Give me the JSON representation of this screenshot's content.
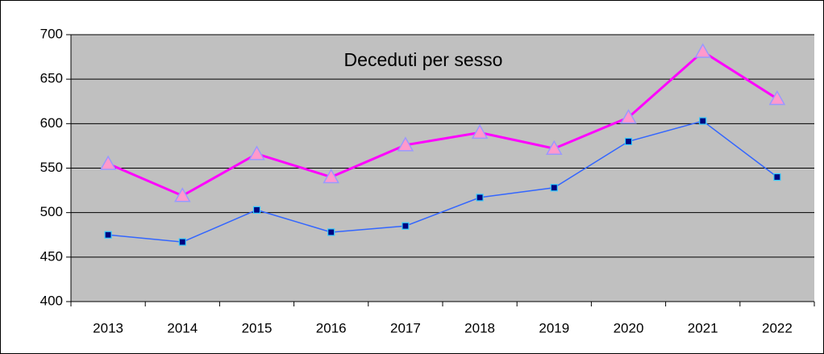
{
  "chart_data": {
    "type": "line",
    "title": "Deceduti per sesso",
    "categories": [
      "2013",
      "2014",
      "2015",
      "2016",
      "2017",
      "2018",
      "2019",
      "2020",
      "2021",
      "2022"
    ],
    "series": [
      {
        "color": "#ff00ff",
        "marker": "triangle",
        "marker_fill": "#ff99cc",
        "marker_stroke": "#9999ff",
        "values": [
          555,
          519,
          566,
          540,
          576,
          590,
          572,
          607,
          681,
          628
        ]
      },
      {
        "color": "#3366ff",
        "marker": "square",
        "marker_fill": "#000080",
        "marker_stroke": "#33ccff",
        "values": [
          475,
          467,
          503,
          478,
          485,
          517,
          528,
          580,
          603,
          540
        ]
      }
    ],
    "ylim": [
      400,
      700
    ],
    "yticks": [
      400,
      450,
      500,
      550,
      600,
      650,
      700
    ],
    "grid": true,
    "plot_background": "#c0c0c0"
  }
}
